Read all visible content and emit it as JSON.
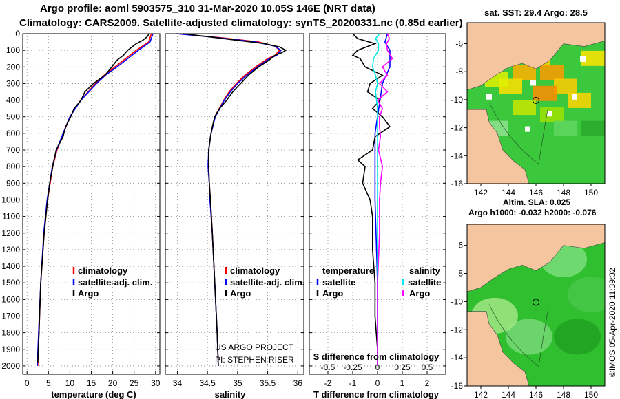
{
  "header": {
    "title_line1": "Argo profile: aoml 5903575_310 31-Mar-2020 10.05S 146E (NRT data)",
    "title_line2": "Climatology: CARS2009. Satellite-adjusted climatology: synTS_20200331.nc (0.85d earlier)"
  },
  "colors": {
    "climatology": "#ff0000",
    "satellite": "#0000ff",
    "argo": "#000000",
    "sat_salinity": "#00e5e5",
    "argo_salinity": "#ff00ff",
    "land": "#f5c5a0",
    "ocean_green": "#33cc33"
  },
  "depth_ticks": [
    "0",
    "100",
    "200",
    "300",
    "400",
    "500",
    "600",
    "700",
    "800",
    "900",
    "1000",
    "1100",
    "1200",
    "1300",
    "1400",
    "1500",
    "1600",
    "1700",
    "1800",
    "1900",
    "2000"
  ],
  "chart_data": [
    {
      "type": "line",
      "panel": "temperature",
      "xlabel": "temperature (deg C)",
      "ylabel": "depth",
      "xlim": [
        -1,
        31
      ],
      "ylim": [
        2050,
        0
      ],
      "xticks": [
        "0",
        "5",
        "10",
        "15",
        "20",
        "25",
        "30"
      ],
      "legend": [
        "climatology",
        "satellite-adj. clim.",
        "Argo"
      ],
      "series": [
        {
          "name": "climatology",
          "color": "red",
          "depth": [
            0,
            50,
            100,
            150,
            200,
            250,
            300,
            400,
            500,
            600,
            700,
            800,
            1000,
            1200,
            1500,
            1800,
            2000
          ],
          "values": [
            29.0,
            28.4,
            25.5,
            23.0,
            20.5,
            18.0,
            16.0,
            12.5,
            10.0,
            8.5,
            7.0,
            6.0,
            4.8,
            4.0,
            3.2,
            2.8,
            2.5
          ]
        },
        {
          "name": "satellite-adj. clim.",
          "color": "blue",
          "depth": [
            0,
            50,
            100,
            150,
            200,
            250,
            300,
            400,
            500,
            600,
            700,
            800,
            1000,
            1200,
            1500,
            1800,
            2000
          ],
          "values": [
            29.4,
            28.7,
            26.0,
            23.5,
            21.0,
            18.3,
            16.2,
            12.6,
            10.0,
            8.4,
            6.9,
            5.9,
            4.7,
            3.9,
            3.2,
            2.7,
            2.4
          ]
        },
        {
          "name": "Argo",
          "color": "black",
          "depth": [
            0,
            20,
            40,
            60,
            80,
            100,
            130,
            160,
            200,
            250,
            300,
            350,
            400,
            450,
            500,
            560,
            620,
            700,
            760,
            800,
            900,
            1000,
            1200,
            1500,
            1800,
            1980
          ],
          "values": [
            28.5,
            28.0,
            27.0,
            25.5,
            24.5,
            23.5,
            22.5,
            21.0,
            19.8,
            18.2,
            15.5,
            13.5,
            12.6,
            11.0,
            10.2,
            9.0,
            8.4,
            6.8,
            6.3,
            6.0,
            5.3,
            4.8,
            4.0,
            3.2,
            2.8,
            2.5
          ]
        }
      ]
    },
    {
      "type": "line",
      "panel": "salinity",
      "xlabel": "salinity",
      "ylabel": "depth",
      "xlim": [
        33.8,
        36.1
      ],
      "ylim": [
        2050,
        0
      ],
      "xticks": [
        "34",
        "34.5",
        "35",
        "35.5",
        "36"
      ],
      "legend": [
        "climatology",
        "satellite-adj. clim.",
        "Argo"
      ],
      "annotations": [
        "US ARGO PROJECT",
        "PI: STEPHEN RISER"
      ],
      "series": [
        {
          "name": "climatology",
          "color": "red",
          "depth": [
            0,
            25,
            50,
            75,
            100,
            130,
            150,
            200,
            250,
            300,
            350,
            400,
            500,
            600,
            700,
            800,
            900,
            1000,
            1200,
            1500,
            1800,
            2000
          ],
          "values": [
            34.0,
            34.75,
            35.35,
            35.62,
            35.7,
            35.62,
            35.5,
            35.3,
            35.12,
            34.98,
            34.86,
            34.77,
            34.62,
            34.56,
            34.52,
            34.52,
            34.53,
            34.55,
            34.58,
            34.62,
            34.66,
            34.68
          ]
        },
        {
          "name": "satellite-adj. clim.",
          "color": "blue",
          "depth": [
            0,
            25,
            50,
            75,
            100,
            130,
            150,
            200,
            250,
            300,
            350,
            400,
            500,
            600,
            700,
            800,
            900,
            1000,
            1200,
            1500,
            1800,
            2000
          ],
          "values": [
            33.98,
            34.7,
            35.3,
            35.62,
            35.72,
            35.65,
            35.53,
            35.33,
            35.15,
            35.0,
            34.88,
            34.78,
            34.63,
            34.56,
            34.52,
            34.51,
            34.53,
            34.54,
            34.58,
            34.62,
            34.66,
            34.68
          ]
        },
        {
          "name": "Argo",
          "color": "black",
          "depth": [
            0,
            20,
            40,
            60,
            80,
            100,
            115,
            130,
            160,
            200,
            250,
            300,
            350,
            400,
            450,
            500,
            560,
            620,
            700,
            800,
            900,
            1000,
            1200,
            1500,
            1800,
            2000
          ],
          "values": [
            34.1,
            34.55,
            35.0,
            35.45,
            35.7,
            35.8,
            35.73,
            35.62,
            35.52,
            35.35,
            35.18,
            35.05,
            34.92,
            34.82,
            34.7,
            34.62,
            34.58,
            34.55,
            34.52,
            34.52,
            34.53,
            34.55,
            34.58,
            34.62,
            34.66,
            34.68
          ]
        }
      ]
    },
    {
      "type": "line",
      "panel": "difference",
      "xlabel": "T difference from climatology",
      "x2label": "S difference from climatology",
      "ylabel": "depth",
      "xlim": [
        -2.75,
        2.75
      ],
      "ylim": [
        2050,
        0
      ],
      "xticks": [
        "-2",
        "-1",
        "0",
        "1",
        "2"
      ],
      "x2ticks": [
        "-0.5",
        "-0.25",
        "0",
        "0.25",
        "0.5"
      ],
      "legend_temperature": [
        "temperature",
        "satellite",
        "Argo"
      ],
      "legend_salinity": [
        "salinity",
        "satellite",
        "Argo"
      ],
      "series": [
        {
          "name": "temperature satellite",
          "color": "blue",
          "depth": [
            0,
            50,
            100,
            150,
            200,
            300,
            400,
            500,
            600,
            700,
            800,
            1000,
            1500,
            2000
          ],
          "values": [
            0.4,
            0.3,
            0.5,
            0.5,
            0.5,
            0.2,
            0.1,
            0.0,
            -0.1,
            -0.1,
            -0.1,
            -0.1,
            0.0,
            0.0
          ]
        },
        {
          "name": "temperature Argo",
          "color": "black",
          "depth": [
            0,
            30,
            60,
            100,
            130,
            150,
            200,
            250,
            300,
            350,
            400,
            450,
            500,
            560,
            620,
            700,
            760,
            800,
            900,
            1000,
            1100,
            1300,
            1500,
            1700,
            1900,
            2000
          ],
          "values": [
            -1.0,
            -0.8,
            -0.1,
            -0.8,
            -1.0,
            -0.7,
            -0.5,
            0.2,
            -0.3,
            -0.4,
            0.1,
            -0.2,
            0.2,
            0.5,
            -0.1,
            -0.2,
            -0.8,
            -0.5,
            -0.6,
            -0.3,
            -0.2,
            -0.2,
            -0.1,
            -0.1,
            0.0,
            0.0
          ]
        },
        {
          "name": "salinity satellite",
          "color": "cyan",
          "depth": [
            0,
            30,
            60,
            100,
            150,
            200,
            250,
            300,
            350,
            400,
            450,
            500,
            600,
            800,
            1000,
            1500,
            2000
          ],
          "values": [
            0.02,
            -0.02,
            0.01,
            0.01,
            -0.04,
            -0.05,
            -0.02,
            0.0,
            -0.02,
            -0.01,
            0.0,
            0.0,
            0.0,
            0.0,
            0.0,
            0.0,
            0.0
          ]
        },
        {
          "name": "salinity Argo",
          "color": "magenta",
          "depth": [
            0,
            30,
            60,
            100,
            150,
            200,
            250,
            300,
            350,
            400,
            450,
            500,
            560,
            620,
            700,
            800,
            900,
            1000,
            1200,
            1500,
            1800,
            2000
          ],
          "values": [
            0.1,
            0.12,
            0.09,
            0.1,
            0.15,
            0.05,
            0.1,
            0.02,
            0.1,
            0.0,
            0.05,
            0.02,
            0.02,
            0.03,
            0.01,
            0.05,
            0.03,
            0.02,
            0.02,
            0.0,
            0.0,
            0.0
          ]
        }
      ]
    },
    {
      "type": "heatmap",
      "panel": "sst map",
      "title": "sat. SST: 29.4 Argo: 28.5",
      "xlim": [
        141,
        151
      ],
      "ylim": [
        -16,
        -4.5
      ],
      "xticks": [
        "142",
        "144",
        "146",
        "148",
        "150"
      ],
      "yticks": [
        "-6",
        "-8",
        "-10",
        "-12",
        "-14",
        "-16"
      ],
      "marker": {
        "lon": 146,
        "lat": -10.05
      }
    },
    {
      "type": "heatmap",
      "panel": "sla map",
      "title": "Altim. SLA: 0.025",
      "subtitle": "Argo h1000: -0.032 h2000: -0.076",
      "xlim": [
        141,
        151
      ],
      "ylim": [
        -16,
        -4.5
      ],
      "xticks": [
        "142",
        "144",
        "146",
        "148",
        "150"
      ],
      "yticks": [
        "-6",
        "-8",
        "-10",
        "-12",
        "-14",
        "-16"
      ],
      "marker": {
        "lon": 146,
        "lat": -10.05
      }
    }
  ],
  "credit": "©IMOS 05-Apr-2020 11:39:32"
}
